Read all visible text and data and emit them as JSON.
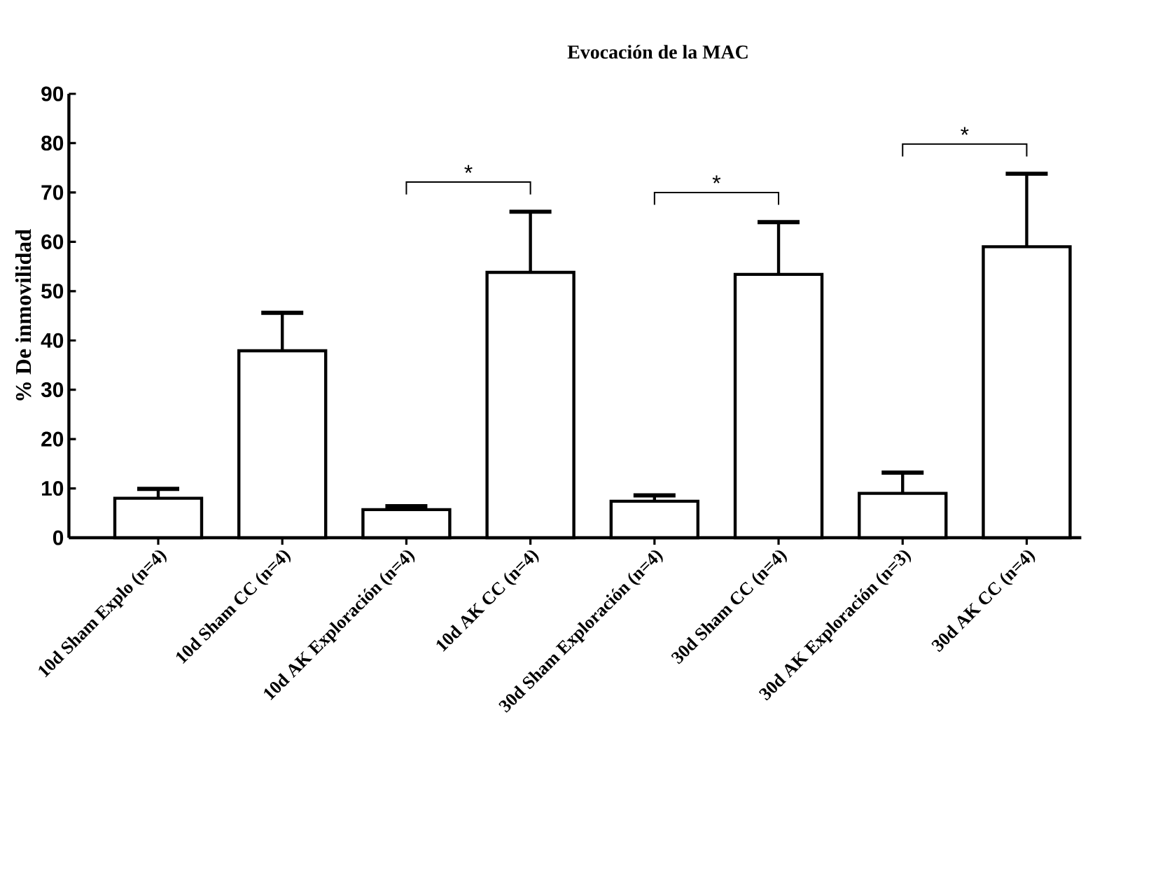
{
  "chart_data": {
    "type": "bar",
    "title": "Evocación de la MAC",
    "ylabel": "% De inmovilidad",
    "categories": [
      "10d Sham Explo (n=4)",
      "10d Sham CC (n=4)",
      "10d AK Exploración (n=4)",
      "10d AK CC (n=4)",
      "30d Sham Exploración (n=4)",
      "30d Sham CC (n=4)",
      "30d AK Exploración (n=3)",
      "30d AK CC (n=4)"
    ],
    "values": [
      8.0,
      37.9,
      5.7,
      53.8,
      7.4,
      53.4,
      9.0,
      59.0
    ],
    "errors": [
      1.9,
      7.7,
      0.7,
      12.3,
      1.2,
      10.6,
      4.2,
      14.8
    ],
    "color": "#000000",
    "ylim": [
      0,
      90
    ],
    "yticks": [
      0,
      10,
      20,
      30,
      40,
      50,
      60,
      70,
      80,
      90
    ],
    "annotations": [
      "*",
      "*",
      "*"
    ],
    "grid": false
  }
}
